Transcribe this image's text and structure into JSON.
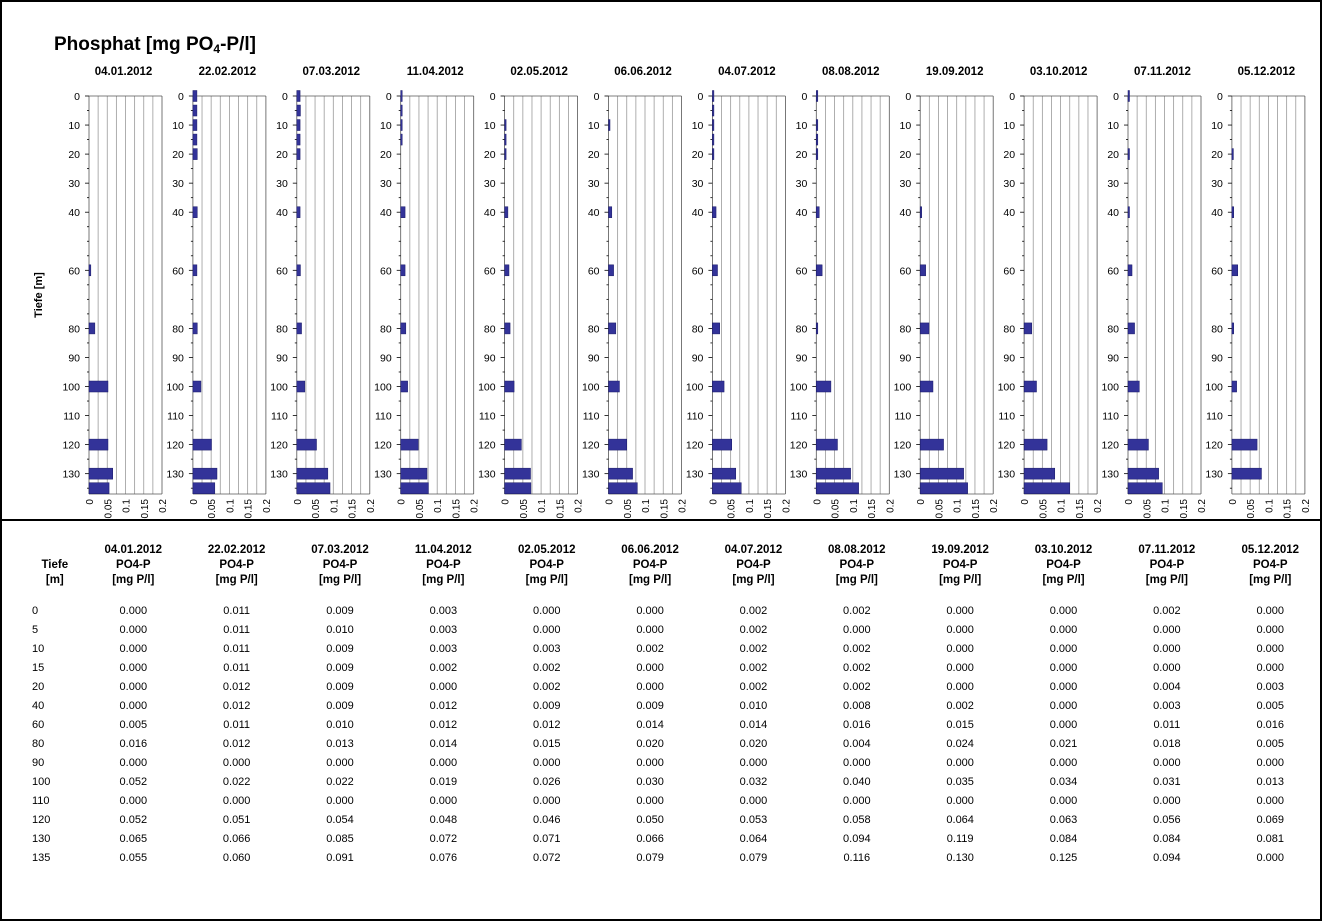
{
  "title": {
    "main": "Phosphat [mg PO",
    "sub": "4",
    "rest": "-P/l]"
  },
  "colors": {
    "bar": "#333399",
    "grid": "#9a9a9a",
    "border": "#000000"
  },
  "chart_data": {
    "type": "bar",
    "orientation": "horizontal",
    "title": "Phosphat [mg PO4-P/l]",
    "ylabel": "Tiefe [m]",
    "xlim": [
      0,
      0.2
    ],
    "x_ticks": [
      "0",
      "0.05",
      "0.1",
      "0.15",
      "0.2"
    ],
    "y_tick_labels": [
      "0",
      "10",
      "20",
      "30",
      "40",
      "60",
      "80",
      "90",
      "100",
      "110",
      "120",
      "130"
    ],
    "grid": true,
    "depths": [
      0,
      5,
      10,
      15,
      20,
      40,
      60,
      80,
      90,
      100,
      110,
      120,
      130,
      135
    ],
    "series": [
      {
        "name": "04.01.2012",
        "values": [
          0.0,
          0.0,
          0.0,
          0.0,
          0.0,
          0.0,
          0.005,
          0.016,
          0.0,
          0.052,
          0.0,
          0.052,
          0.065,
          0.055
        ]
      },
      {
        "name": "22.02.2012",
        "values": [
          0.011,
          0.011,
          0.011,
          0.011,
          0.012,
          0.012,
          0.011,
          0.012,
          0.0,
          0.022,
          0.0,
          0.051,
          0.066,
          0.06
        ]
      },
      {
        "name": "07.03.2012",
        "values": [
          0.009,
          0.01,
          0.009,
          0.009,
          0.009,
          0.009,
          0.01,
          0.013,
          0.0,
          0.022,
          0.0,
          0.054,
          0.085,
          0.091
        ]
      },
      {
        "name": "11.04.2012",
        "values": [
          0.003,
          0.003,
          0.003,
          0.002,
          0.0,
          0.012,
          0.012,
          0.014,
          0.0,
          0.019,
          0.0,
          0.048,
          0.072,
          0.076
        ]
      },
      {
        "name": "02.05.2012",
        "values": [
          0.0,
          0.0,
          0.003,
          0.002,
          0.002,
          0.009,
          0.012,
          0.015,
          0.0,
          0.026,
          0.0,
          0.046,
          0.071,
          0.072
        ]
      },
      {
        "name": "06.06.2012",
        "values": [
          0.0,
          0.0,
          0.002,
          0.0,
          0.0,
          0.009,
          0.014,
          0.02,
          0.0,
          0.03,
          0.0,
          0.05,
          0.066,
          0.079
        ]
      },
      {
        "name": "04.07.2012",
        "values": [
          0.002,
          0.002,
          0.002,
          0.002,
          0.002,
          0.01,
          0.014,
          0.02,
          0.0,
          0.032,
          0.0,
          0.053,
          0.064,
          0.079
        ]
      },
      {
        "name": "08.08.2012",
        "values": [
          0.002,
          0.0,
          0.002,
          0.002,
          0.002,
          0.008,
          0.016,
          0.004,
          0.0,
          0.04,
          0.0,
          0.058,
          0.094,
          0.116
        ]
      },
      {
        "name": "19.09.2012",
        "values": [
          0.0,
          0.0,
          0.0,
          0.0,
          0.0,
          0.002,
          0.015,
          0.024,
          0.0,
          0.035,
          0.0,
          0.064,
          0.119,
          0.13
        ]
      },
      {
        "name": "03.10.2012",
        "values": [
          0.0,
          0.0,
          0.0,
          0.0,
          0.0,
          0.0,
          0.0,
          0.021,
          0.0,
          0.034,
          0.0,
          0.063,
          0.084,
          0.125
        ]
      },
      {
        "name": "07.11.2012",
        "values": [
          0.002,
          0.0,
          0.0,
          0.0,
          0.004,
          0.003,
          0.011,
          0.018,
          0.0,
          0.031,
          0.0,
          0.056,
          0.084,
          0.094
        ]
      },
      {
        "name": "05.12.2012",
        "values": [
          0.0,
          0.0,
          0.0,
          0.0,
          0.003,
          0.005,
          0.016,
          0.005,
          0.0,
          0.013,
          0.0,
          0.069,
          0.081,
          0.0
        ]
      }
    ]
  },
  "table": {
    "depth_header": [
      "Tiefe",
      "[m]"
    ],
    "param_label": "PO4-P",
    "unit_label": "[mg P/l]",
    "rows": [
      {
        "depth": "0",
        "values": [
          "0.000",
          "0.011",
          "0.009",
          "0.003",
          "0.000",
          "0.000",
          "0.002",
          "0.002",
          "0.000",
          "0.000",
          "0.002",
          "0.000"
        ]
      },
      {
        "depth": "5",
        "values": [
          "0.000",
          "0.011",
          "0.010",
          "0.003",
          "0.000",
          "0.000",
          "0.002",
          "0.000",
          "0.000",
          "0.000",
          "0.000",
          "0.000"
        ]
      },
      {
        "depth": "10",
        "values": [
          "0.000",
          "0.011",
          "0.009",
          "0.003",
          "0.003",
          "0.002",
          "0.002",
          "0.002",
          "0.000",
          "0.000",
          "0.000",
          "0.000"
        ]
      },
      {
        "depth": "15",
        "values": [
          "0.000",
          "0.011",
          "0.009",
          "0.002",
          "0.002",
          "0.000",
          "0.002",
          "0.002",
          "0.000",
          "0.000",
          "0.000",
          "0.000"
        ]
      },
      {
        "depth": "20",
        "values": [
          "0.000",
          "0.012",
          "0.009",
          "0.000",
          "0.002",
          "0.000",
          "0.002",
          "0.002",
          "0.000",
          "0.000",
          "0.004",
          "0.003"
        ]
      },
      {
        "depth": "40",
        "values": [
          "0.000",
          "0.012",
          "0.009",
          "0.012",
          "0.009",
          "0.009",
          "0.010",
          "0.008",
          "0.002",
          "0.000",
          "0.003",
          "0.005"
        ]
      },
      {
        "depth": "60",
        "values": [
          "0.005",
          "0.011",
          "0.010",
          "0.012",
          "0.012",
          "0.014",
          "0.014",
          "0.016",
          "0.015",
          "0.000",
          "0.011",
          "0.016"
        ]
      },
      {
        "depth": "80",
        "values": [
          "0.016",
          "0.012",
          "0.013",
          "0.014",
          "0.015",
          "0.020",
          "0.020",
          "0.004",
          "0.024",
          "0.021",
          "0.018",
          "0.005"
        ]
      },
      {
        "depth": "90",
        "values": [
          "0.000",
          "0.000",
          "0.000",
          "0.000",
          "0.000",
          "0.000",
          "0.000",
          "0.000",
          "0.000",
          "0.000",
          "0.000",
          "0.000"
        ]
      },
      {
        "depth": "100",
        "values": [
          "0.052",
          "0.022",
          "0.022",
          "0.019",
          "0.026",
          "0.030",
          "0.032",
          "0.040",
          "0.035",
          "0.034",
          "0.031",
          "0.013"
        ]
      },
      {
        "depth": "110",
        "values": [
          "0.000",
          "0.000",
          "0.000",
          "0.000",
          "0.000",
          "0.000",
          "0.000",
          "0.000",
          "0.000",
          "0.000",
          "0.000",
          "0.000"
        ]
      },
      {
        "depth": "120",
        "values": [
          "0.052",
          "0.051",
          "0.054",
          "0.048",
          "0.046",
          "0.050",
          "0.053",
          "0.058",
          "0.064",
          "0.063",
          "0.056",
          "0.069"
        ]
      },
      {
        "depth": "130",
        "values": [
          "0.065",
          "0.066",
          "0.085",
          "0.072",
          "0.071",
          "0.066",
          "0.064",
          "0.094",
          "0.119",
          "0.084",
          "0.084",
          "0.081"
        ]
      },
      {
        "depth": "135",
        "values": [
          "0.055",
          "0.060",
          "0.091",
          "0.076",
          "0.072",
          "0.079",
          "0.079",
          "0.116",
          "0.130",
          "0.125",
          "0.094",
          "0.000"
        ]
      }
    ]
  }
}
